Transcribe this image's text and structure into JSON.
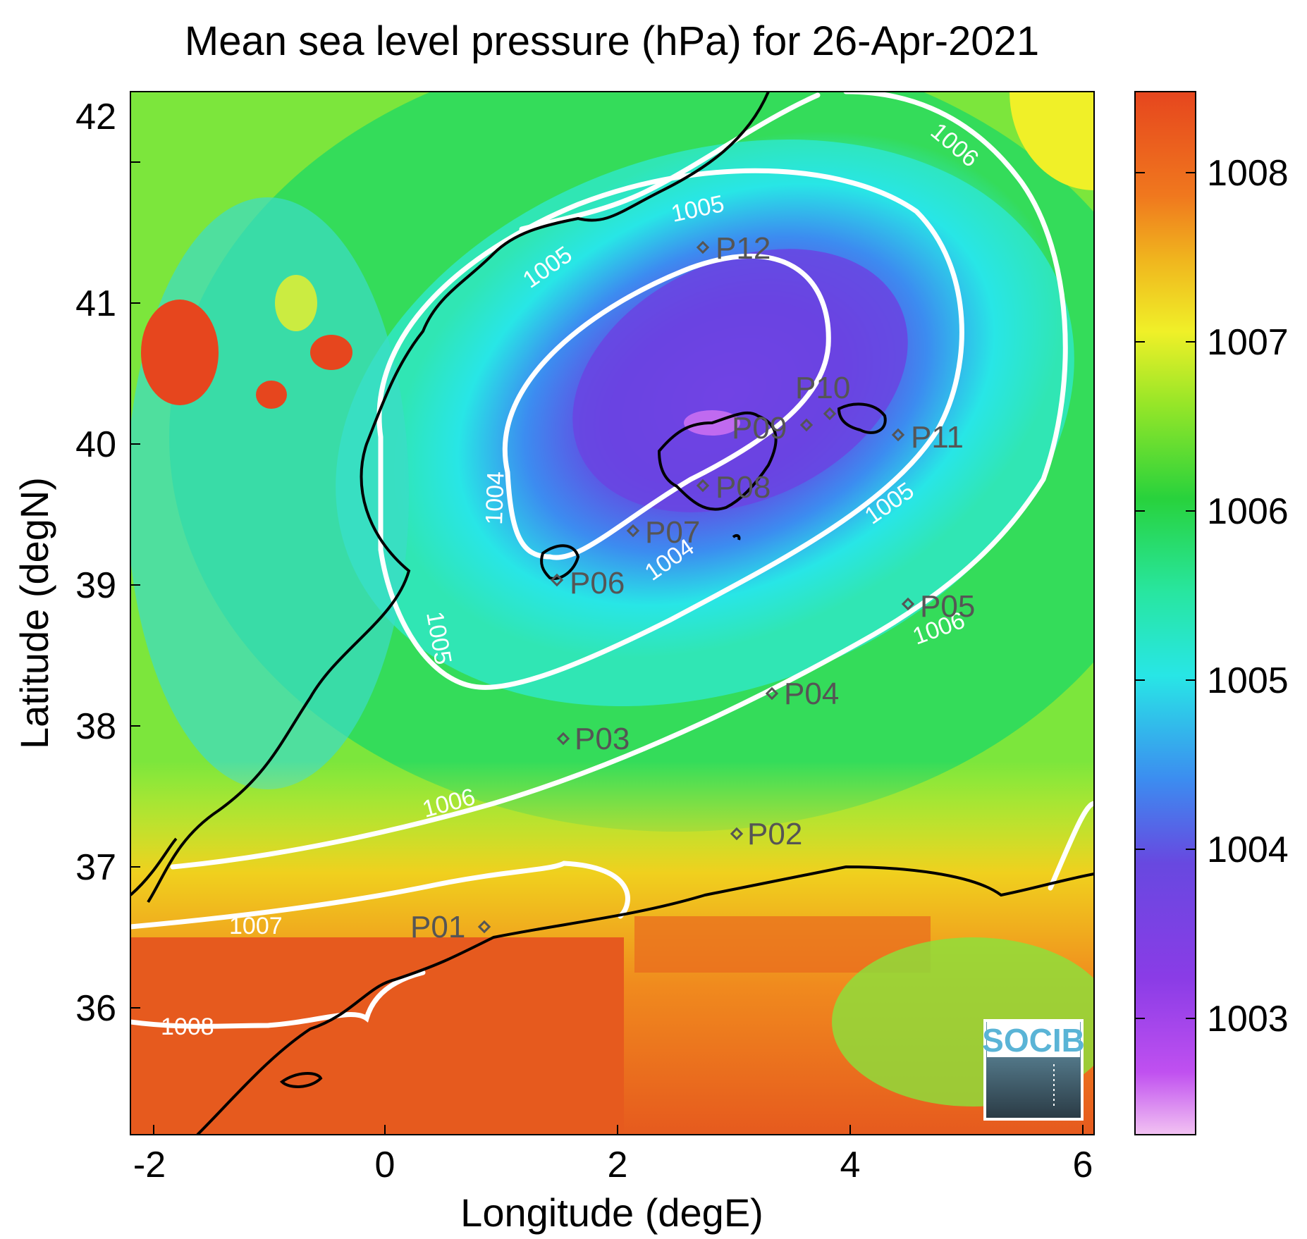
{
  "title": "Mean sea level pressure (hPa) for 26-Apr-2021",
  "xlabel": "Longitude (degE)",
  "ylabel": "Latitude (degN)",
  "xticks": [
    "-2",
    "0",
    "2",
    "4",
    "6"
  ],
  "yticks": [
    "36",
    "37",
    "38",
    "39",
    "40",
    "41",
    "42"
  ],
  "colorbar": {
    "ticks": [
      "1003",
      "1004",
      "1005",
      "1006",
      "1007",
      "1008"
    ],
    "range": [
      1002.3,
      1008.5
    ]
  },
  "contour_labels": [
    "1004",
    "1004",
    "1005",
    "1005",
    "1005",
    "1005",
    "1006",
    "1006",
    "1006",
    "1007",
    "1008"
  ],
  "points": [
    "P01",
    "P02",
    "P03",
    "P04",
    "P05",
    "P06",
    "P07",
    "P08",
    "P09",
    "P10",
    "P11",
    "P12"
  ],
  "logo": "SOCIB",
  "chart_data": {
    "type": "heatmap",
    "title": "Mean sea level pressure (hPa) for 26-Apr-2021",
    "xlabel": "Longitude (degE)",
    "ylabel": "Latitude (degN)",
    "xlim": [
      -2.2,
      6.0
    ],
    "ylim": [
      35.2,
      42.2
    ],
    "colorbar_range": [
      1002.3,
      1008.5
    ],
    "colormap": [
      "#f0b6f0",
      "#b43cf0",
      "#6440e6",
      "#3c82f0",
      "#28e6e6",
      "#28dc64",
      "#9be628",
      "#f0f028",
      "#f0961e",
      "#e64b1e"
    ],
    "low_center": {
      "lon": 2.8,
      "lat": 39.85,
      "value": 1003
    },
    "contours": [
      {
        "level": 1004,
        "labels": 2
      },
      {
        "level": 1005,
        "labels": 4
      },
      {
        "level": 1006,
        "labels": 3
      },
      {
        "level": 1007,
        "labels": 1
      },
      {
        "level": 1008,
        "labels": 1
      }
    ],
    "stations": [
      {
        "name": "P01",
        "lon": 0.83,
        "lat": 36.5
      },
      {
        "name": "P02",
        "lon": 3.0,
        "lat": 37.15
      },
      {
        "name": "P03",
        "lon": 1.5,
        "lat": 37.8
      },
      {
        "name": "P04",
        "lon": 3.3,
        "lat": 38.1
      },
      {
        "name": "P05",
        "lon": 4.45,
        "lat": 38.7
      },
      {
        "name": "P06",
        "lon": 1.45,
        "lat": 38.85
      },
      {
        "name": "P07",
        "lon": 2.1,
        "lat": 39.2
      },
      {
        "name": "P08",
        "lon": 2.7,
        "lat": 39.5
      },
      {
        "name": "P09",
        "lon": 3.6,
        "lat": 39.9
      },
      {
        "name": "P10",
        "lon": 3.8,
        "lat": 40.0
      },
      {
        "name": "P11",
        "lon": 4.4,
        "lat": 39.85
      },
      {
        "name": "P12",
        "lon": 2.7,
        "lat": 41.1
      }
    ]
  }
}
